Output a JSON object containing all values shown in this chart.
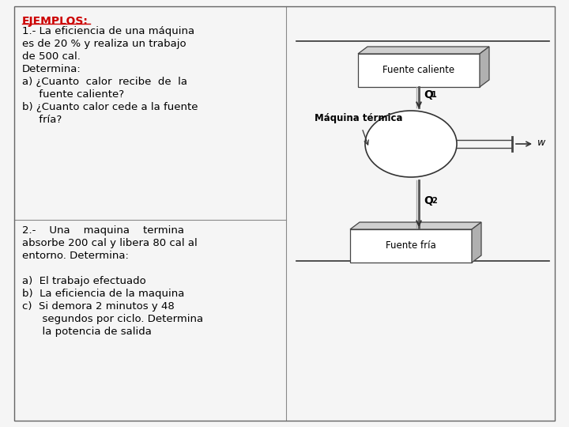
{
  "bg_color": "#f5f5f5",
  "border_color": "#888888",
  "title": "EJEMPLOS:",
  "title_color": "#cc0000",
  "text_block1": [
    "1.- La eficiencia de una máquina",
    "es de 20 % y realiza un trabajo",
    "de 500 cal.",
    "Determina:",
    "a) ¿Cuanto  calor  recibe  de  la",
    "     fuente caliente?",
    "b) ¿Cuanto calor cede a la fuente",
    "     fría?"
  ],
  "text_block2": [
    "2.-    Una    maquina    termina",
    "absorbe 200 cal y libera 80 cal al",
    "entorno. Determina:",
    "",
    "a)  El trabajo efectuado",
    "b)  La eficiencia de la maquina",
    "c)  Si demora 2 minutos y 48",
    "      segundos por ciclo. Determina",
    "      la potencia de salida"
  ],
  "diagram_labels": {
    "fuente_caliente": "Fuente caliente",
    "maquina_termica": "Máquina térmica",
    "fuente_fria": "Fuente fría",
    "q1": "Q",
    "q1_sub": "1",
    "q2": "Q",
    "q2_sub": "2",
    "w": "w"
  },
  "font_size_title": 10,
  "font_size_text": 9.5,
  "font_size_diagram": 9
}
